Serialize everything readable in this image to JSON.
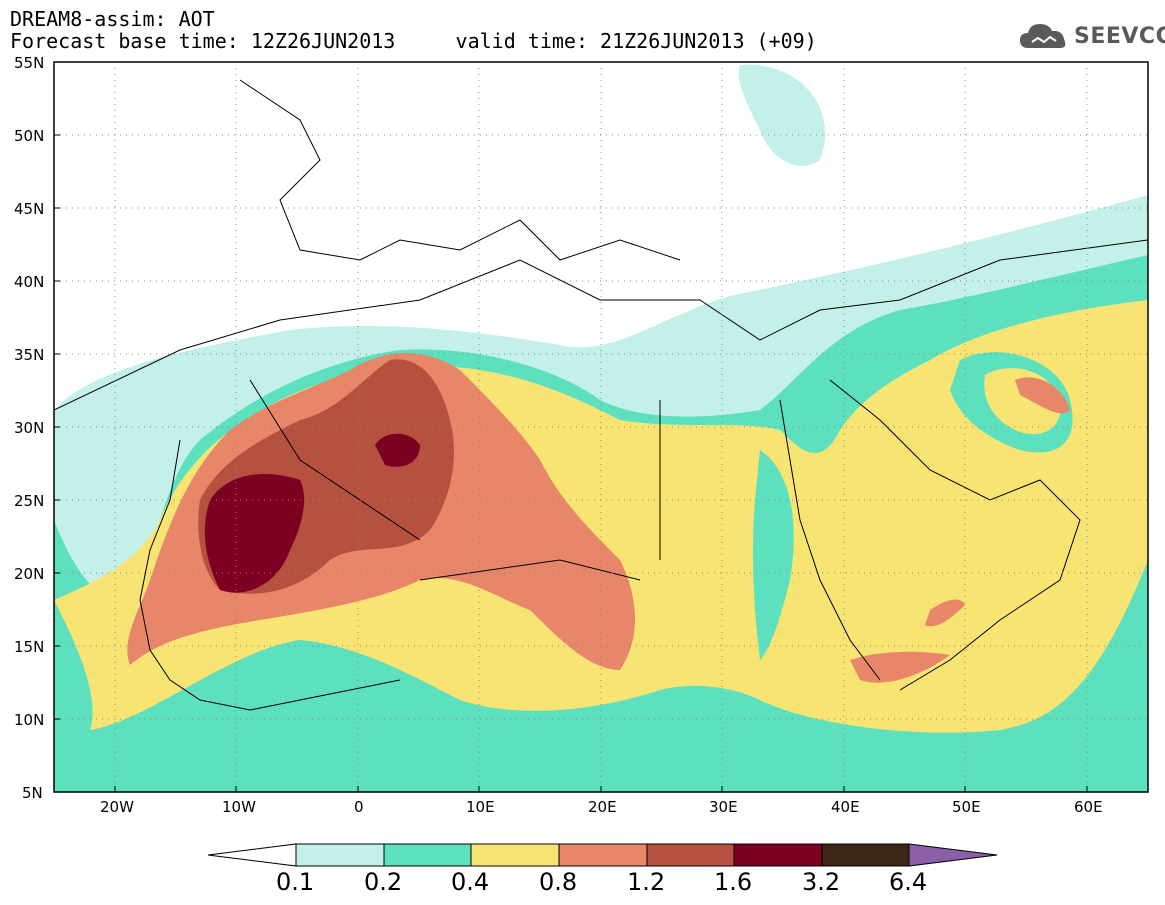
{
  "header": {
    "title": "DREAM8-assim: AOT",
    "base_time_label": "Forecast base time: 12Z26JUN2013",
    "valid_time_label": "valid time: 21Z26JUN2013 (+09)"
  },
  "logo": {
    "text": "SEEVCCC",
    "icon": "cloud-icon"
  },
  "map": {
    "lat_labels": [
      "55N",
      "50N",
      "45N",
      "40N",
      "35N",
      "30N",
      "25N",
      "20N",
      "15N",
      "10N",
      "5N"
    ],
    "lon_labels": [
      "20W",
      "10W",
      "0",
      "10E",
      "20E",
      "30E",
      "40E",
      "50E",
      "60E"
    ],
    "lat_range": [
      5,
      55
    ],
    "lon_range": [
      -25,
      65
    ]
  },
  "colorbar": {
    "levels": [
      "0.1",
      "0.2",
      "0.4",
      "0.8",
      "1.2",
      "1.6",
      "3.2",
      "6.4"
    ],
    "colors": [
      "#ffffff",
      "#c4f0ea",
      "#5de0bd",
      "#f7e473",
      "#e8866a",
      "#b5513f",
      "#7d0022",
      "#3b2515",
      "#8b5ea7"
    ]
  }
}
